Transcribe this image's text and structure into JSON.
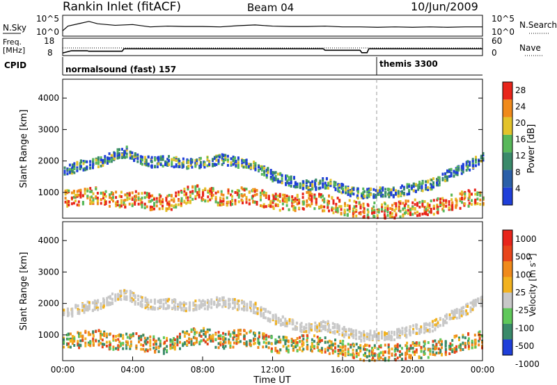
{
  "header": {
    "station": "Rankin Inlet (fitACF)",
    "beam": "Beam 04",
    "date": "10/Jun/2009"
  },
  "status_panels": {
    "nsky_label": "N.Sky",
    "nsearch_label": "N.Search",
    "freq_label_line1": "Freq.",
    "freq_label_line2": "[MHz]",
    "nave_label": "Nave",
    "cpid_label": "CPID",
    "nsky_ticks": [
      "10^5",
      "10^0"
    ],
    "nsearch_ticks": [
      "10^5",
      "10^0"
    ],
    "freq_ticks": [
      "18",
      "8"
    ],
    "nave_ticks": [
      "60",
      "0"
    ],
    "cpid_segments": [
      {
        "label": "normalsound (fast) 157",
        "start_hour": 0
      },
      {
        "label": "themis 3300",
        "start_hour": 18
      }
    ],
    "freq_trace": [
      [
        0,
        9.2
      ],
      [
        0.5,
        10.6
      ],
      [
        1.4,
        10.6
      ],
      [
        1.5,
        10.3
      ],
      [
        3.4,
        10.3
      ],
      [
        3.5,
        11.8
      ],
      [
        14.9,
        11.8
      ],
      [
        15,
        10.9
      ],
      [
        17,
        10.9
      ],
      [
        17.1,
        9.4
      ],
      [
        17.4,
        9.4
      ],
      [
        17.5,
        11.8
      ],
      [
        24,
        11.8
      ]
    ],
    "nsky_trace": [
      [
        0,
        1.2
      ],
      [
        0.3,
        2.4
      ],
      [
        1,
        3.1
      ],
      [
        1.5,
        3.6
      ],
      [
        2,
        3.0
      ],
      [
        3,
        2.6
      ],
      [
        4,
        2.8
      ],
      [
        5,
        2.2
      ],
      [
        6,
        2.4
      ],
      [
        7,
        2.3
      ],
      [
        8,
        2.3
      ],
      [
        9,
        2.2
      ],
      [
        10,
        2.5
      ],
      [
        11,
        2.7
      ],
      [
        12,
        2.4
      ],
      [
        13,
        2.3
      ],
      [
        14,
        2.3
      ],
      [
        15,
        2.4
      ],
      [
        16,
        2.2
      ],
      [
        17,
        2.2
      ],
      [
        18,
        2.1
      ],
      [
        19,
        2.2
      ],
      [
        20,
        2.1
      ],
      [
        21,
        2.2
      ],
      [
        22,
        2.1
      ],
      [
        23,
        2.2
      ],
      [
        24,
        2.2
      ]
    ]
  },
  "chart_data": [
    {
      "type": "heatmap",
      "quantity": "Power",
      "xlabel": "",
      "ylabel": "Slant Range [km]",
      "xlim": [
        0,
        24
      ],
      "ylim": [
        180,
        4600
      ],
      "yticks": [
        "1000",
        "2000",
        "3000",
        "4000"
      ],
      "colorbar_label": "Power [dB]",
      "colorbar_ticks": [
        "4",
        "8",
        "12",
        "16",
        "20",
        "24",
        "28"
      ],
      "colorbar_range": [
        0,
        30
      ],
      "colors": [
        "#1f3fd9",
        "#2a5fa8",
        "#3a8a6a",
        "#58b85a",
        "#e3c32b",
        "#f08a1b",
        "#e8251b"
      ],
      "bands": [
        {
          "name": "far",
          "points": [
            [
              0,
              1650
            ],
            [
              1,
              1850
            ],
            [
              2,
              1950
            ],
            [
              3,
              2200
            ],
            [
              3.7,
              2300
            ],
            [
              4,
              2150
            ],
            [
              5,
              1950
            ],
            [
              6,
              2000
            ],
            [
              7,
              1900
            ],
            [
              8,
              1950
            ],
            [
              9,
              2050
            ],
            [
              10,
              1950
            ],
            [
              11,
              1850
            ],
            [
              12,
              1500
            ],
            [
              13,
              1350
            ],
            [
              14,
              1200
            ],
            [
              15,
              1300
            ],
            [
              16,
              1100
            ],
            [
              17,
              950
            ],
            [
              18,
              1000
            ],
            [
              19,
              1000
            ],
            [
              20,
              1150
            ],
            [
              21,
              1250
            ],
            [
              22,
              1550
            ],
            [
              23,
              1800
            ],
            [
              24,
              2100
            ]
          ],
          "value": 12
        },
        {
          "name": "near",
          "points": [
            [
              0,
              800
            ],
            [
              1,
              850
            ],
            [
              2,
              900
            ],
            [
              3,
              750
            ],
            [
              4,
              800
            ],
            [
              5,
              700
            ],
            [
              6,
              650
            ],
            [
              7,
              900
            ],
            [
              8,
              1000
            ],
            [
              9,
              800
            ],
            [
              10,
              900
            ],
            [
              11,
              850
            ],
            [
              12,
              700
            ],
            [
              13,
              650
            ],
            [
              14,
              750
            ],
            [
              15,
              650
            ],
            [
              16,
              550
            ],
            [
              17,
              450
            ],
            [
              18,
              400
            ],
            [
              19,
              450
            ],
            [
              20,
              500
            ],
            [
              21,
              550
            ],
            [
              22,
              650
            ],
            [
              23,
              800
            ],
            [
              24,
              850
            ]
          ],
          "value": 24
        }
      ]
    },
    {
      "type": "heatmap",
      "quantity": "Velocity",
      "xlabel": "Time UT",
      "ylabel": "Slant Range [km]",
      "xlim": [
        0,
        24
      ],
      "ylim": [
        180,
        4600
      ],
      "xticks": [
        "00:00",
        "04:00",
        "08:00",
        "12:00",
        "16:00",
        "20:00",
        "00:00"
      ],
      "yticks": [
        "1000",
        "2000",
        "3000",
        "4000"
      ],
      "colorbar_label": "Velocity [m s^-1]",
      "colorbar_ticks": [
        "1000",
        "500",
        "100",
        "25",
        "-25",
        "-100",
        "-500",
        "-1000"
      ],
      "colors": [
        "#1f3fd9",
        "#3a8a6a",
        "#5fc85a",
        "#c8c8c8",
        "#f2b21f",
        "#f08a1b",
        "#e8451b",
        "#e8251b"
      ],
      "bands": [
        {
          "name": "far",
          "points": [
            [
              0,
              1650
            ],
            [
              1,
              1850
            ],
            [
              2,
              1950
            ],
            [
              3,
              2200
            ],
            [
              3.7,
              2300
            ],
            [
              4,
              2150
            ],
            [
              5,
              1950
            ],
            [
              6,
              2000
            ],
            [
              7,
              1900
            ],
            [
              8,
              1950
            ],
            [
              9,
              2050
            ],
            [
              10,
              1950
            ],
            [
              11,
              1850
            ],
            [
              12,
              1500
            ],
            [
              13,
              1350
            ],
            [
              14,
              1200
            ],
            [
              15,
              1300
            ],
            [
              16,
              1100
            ],
            [
              17,
              950
            ],
            [
              18,
              1000
            ],
            [
              19,
              1000
            ],
            [
              20,
              1150
            ],
            [
              21,
              1250
            ],
            [
              22,
              1550
            ],
            [
              23,
              1800
            ],
            [
              24,
              2100
            ]
          ],
          "value": 0
        },
        {
          "name": "near",
          "points": [
            [
              0,
              800
            ],
            [
              1,
              850
            ],
            [
              2,
              900
            ],
            [
              3,
              750
            ],
            [
              4,
              800
            ],
            [
              5,
              700
            ],
            [
              6,
              650
            ],
            [
              7,
              900
            ],
            [
              8,
              1000
            ],
            [
              9,
              800
            ],
            [
              10,
              900
            ],
            [
              11,
              850
            ],
            [
              12,
              700
            ],
            [
              13,
              650
            ],
            [
              14,
              750
            ],
            [
              15,
              650
            ],
            [
              16,
              550
            ],
            [
              17,
              450
            ],
            [
              18,
              400
            ],
            [
              19,
              450
            ],
            [
              20,
              500
            ],
            [
              21,
              550
            ],
            [
              22,
              650
            ],
            [
              23,
              800
            ],
            [
              24,
              850
            ]
          ],
          "value": -150
        }
      ]
    }
  ]
}
